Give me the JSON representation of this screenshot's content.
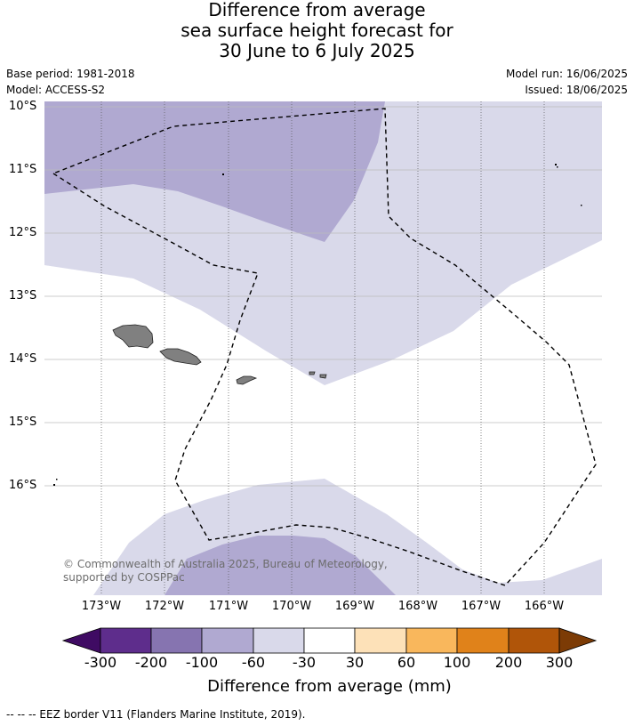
{
  "title": {
    "line1": "Difference from average",
    "line2": "sea surface height forecast for",
    "line3": "30 June to 6 July 2025"
  },
  "meta": {
    "base_period": "Base period: 1981-2018",
    "model": "Model: ACCESS-S2",
    "model_run": "Model run: 16/06/2025",
    "issued": "Issued: 18/06/2025"
  },
  "map": {
    "lat_labels": [
      "10°S",
      "11°S",
      "12°S",
      "13°S",
      "14°S",
      "15°S",
      "16°S"
    ],
    "lon_labels": [
      "173°W",
      "172°W",
      "171°W",
      "170°W",
      "169°W",
      "168°W",
      "167°W",
      "166°W"
    ],
    "copyright": "© Commonwealth of Australia 2025, Bureau of Meteorology, supported by COSPPac",
    "colors": {
      "band_minus100_minus60": "#b0a9d1",
      "band_minus60_minus30": "#d9d9ea",
      "band_minus30_30": "#ffffff",
      "land": "#808080",
      "eez_line": "#000000"
    }
  },
  "colorbar": {
    "title": "Difference from average (mm)",
    "ticks": [
      "-300",
      "-200",
      "-100",
      "-60",
      "-30",
      "30",
      "60",
      "100",
      "200",
      "300"
    ],
    "colors": [
      "#3f0b63",
      "#5e2d8c",
      "#8674b0",
      "#b0a9d1",
      "#d9d9ea",
      "#ffffff",
      "#fde1b8",
      "#f9b75c",
      "#e0821a",
      "#b05509",
      "#7c3b05"
    ]
  },
  "footer": "--  --  -- EEZ border V11 (Flanders Marine Institute, 2019)."
}
